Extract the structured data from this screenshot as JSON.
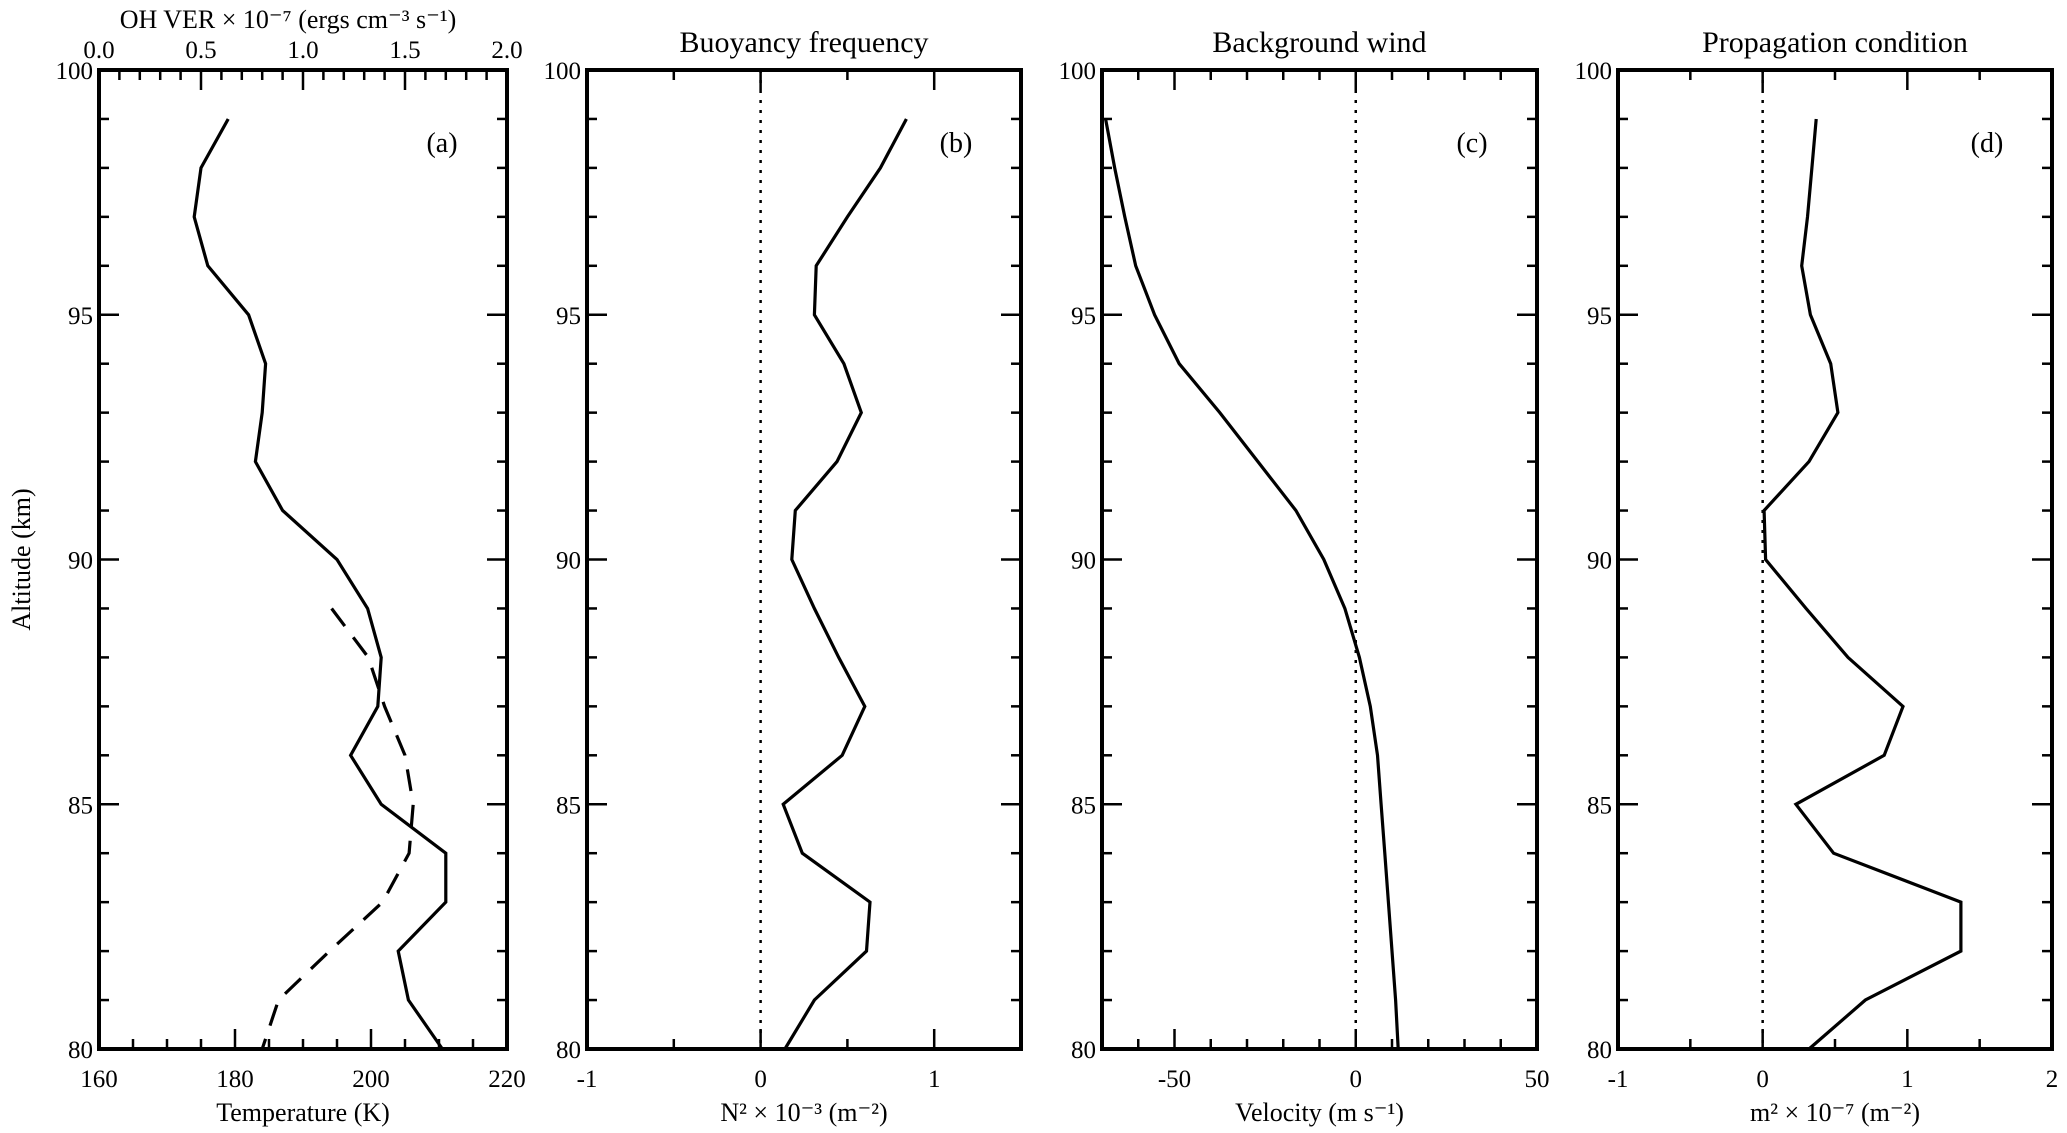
{
  "chart_data": [
    {
      "type": "line",
      "panel_label": "(a)",
      "title": "",
      "xlabel": "Temperature (K)",
      "ylabel": "Altitude (km)",
      "xlim": [
        160,
        220
      ],
      "xticks": [
        160,
        180,
        200,
        220
      ],
      "xtick_labels": [
        "160",
        "180",
        "200",
        "220"
      ],
      "x_minor_step": 5,
      "top_axis": {
        "label": "OH VER × 10⁻⁷ (ergs cm⁻³ s⁻¹)",
        "xlim": [
          0,
          2
        ],
        "xticks": [
          0,
          0.5,
          1.0,
          1.5,
          2.0
        ],
        "xtick_labels": [
          "0.0",
          "0.5",
          "1.0",
          "1.5",
          "2.0"
        ],
        "x_minor_step": 0.1
      },
      "ylim": [
        80,
        100
      ],
      "yticks": [
        80,
        85,
        90,
        95,
        100
      ],
      "ytick_labels": [
        "80",
        "85",
        "90",
        "95",
        "100"
      ],
      "zero_line": false,
      "series": [
        {
          "name": "Temperature",
          "style": "solid",
          "axis": "bottom",
          "y": [
            99,
            98,
            97,
            96,
            95,
            94,
            93,
            92,
            91,
            90,
            89,
            88,
            87,
            86,
            85,
            84,
            83,
            82,
            81,
            80
          ],
          "x": [
            179,
            175,
            174,
            176,
            182,
            184.5,
            184,
            183,
            187,
            195,
            199.5,
            201.5,
            201,
            197,
            201.5,
            211,
            211,
            204,
            205.5,
            210.5
          ]
        },
        {
          "name": "OH VER",
          "style": "dashed",
          "axis": "top",
          "y": [
            89,
            88,
            87,
            86,
            85,
            84,
            83,
            82,
            81,
            80
          ],
          "x": [
            1.14,
            1.32,
            1.4,
            1.5,
            1.54,
            1.52,
            1.39,
            1.13,
            0.88,
            0.8
          ]
        }
      ]
    },
    {
      "type": "line",
      "panel_label": "(b)",
      "title": "Buoyancy frequency",
      "xlabel": "N² × 10⁻³ (m⁻²)",
      "xlim": [
        -1,
        1.5
      ],
      "xticks": [
        -1,
        0,
        1
      ],
      "xtick_labels": [
        "-1",
        "0",
        "1"
      ],
      "x_minor_step": 0.5,
      "ylim": [
        80,
        100
      ],
      "yticks": [
        80,
        85,
        90,
        95,
        100
      ],
      "ytick_labels": [
        "80",
        "85",
        "90",
        "95",
        "100"
      ],
      "zero_line": true,
      "series": [
        {
          "name": "N2",
          "style": "solid",
          "axis": "bottom",
          "y": [
            99,
            98,
            97,
            96,
            95,
            94,
            93,
            92,
            91,
            90,
            89,
            88,
            87,
            86,
            85,
            84,
            83,
            82,
            81,
            80
          ],
          "x": [
            0.84,
            0.69,
            0.5,
            0.32,
            0.31,
            0.48,
            0.58,
            0.44,
            0.2,
            0.18,
            0.31,
            0.45,
            0.6,
            0.47,
            0.13,
            0.24,
            0.63,
            0.61,
            0.31,
            0.14
          ]
        }
      ]
    },
    {
      "type": "line",
      "panel_label": "(c)",
      "title": "Background wind",
      "xlabel": "Velocity (m s⁻¹)",
      "xlim": [
        -70,
        50
      ],
      "xticks": [
        -50,
        0,
        50
      ],
      "xtick_labels": [
        "-50",
        "0",
        "50"
      ],
      "x_minor_step": 10,
      "ylim": [
        80,
        100
      ],
      "yticks": [
        80,
        85,
        90,
        95,
        100
      ],
      "ytick_labels": [
        "80",
        "85",
        "90",
        "95",
        "100"
      ],
      "zero_line": true,
      "series": [
        {
          "name": "Wind",
          "style": "solid",
          "axis": "bottom",
          "y": [
            99,
            98,
            97,
            96,
            95,
            94,
            93,
            92,
            91,
            90,
            89,
            88,
            87,
            86,
            85,
            84,
            83,
            82,
            81,
            80
          ],
          "x": [
            -69,
            -66.5,
            -63.7,
            -60.7,
            -55.5,
            -48.7,
            -37.5,
            -27,
            -16.5,
            -8.8,
            -3,
            1,
            4,
            6,
            7,
            8,
            9,
            10,
            11,
            11.7
          ]
        }
      ]
    },
    {
      "type": "line",
      "panel_label": "(d)",
      "title": "Propagation condition",
      "xlabel": "m² × 10⁻⁷ (m⁻²)",
      "xlim": [
        -1,
        2
      ],
      "xticks": [
        -1,
        0,
        1,
        2
      ],
      "xtick_labels": [
        "-1",
        "0",
        "1",
        "2"
      ],
      "x_minor_step": 0.5,
      "ylim": [
        80,
        100
      ],
      "yticks": [
        80,
        85,
        90,
        95,
        100
      ],
      "ytick_labels": [
        "80",
        "85",
        "90",
        "95",
        "100"
      ],
      "zero_line": true,
      "series": [
        {
          "name": "m2",
          "style": "solid",
          "axis": "bottom",
          "y": [
            99,
            98,
            97,
            96,
            95,
            94,
            93,
            92,
            91,
            90,
            89,
            88,
            87,
            86,
            85,
            84,
            83,
            82,
            81,
            80
          ],
          "x": [
            0.37,
            0.34,
            0.31,
            0.27,
            0.33,
            0.47,
            0.52,
            0.32,
            0.01,
            0.02,
            0.3,
            0.59,
            0.97,
            0.84,
            0.23,
            0.49,
            1.37,
            1.37,
            0.71,
            0.32
          ]
        }
      ]
    }
  ]
}
